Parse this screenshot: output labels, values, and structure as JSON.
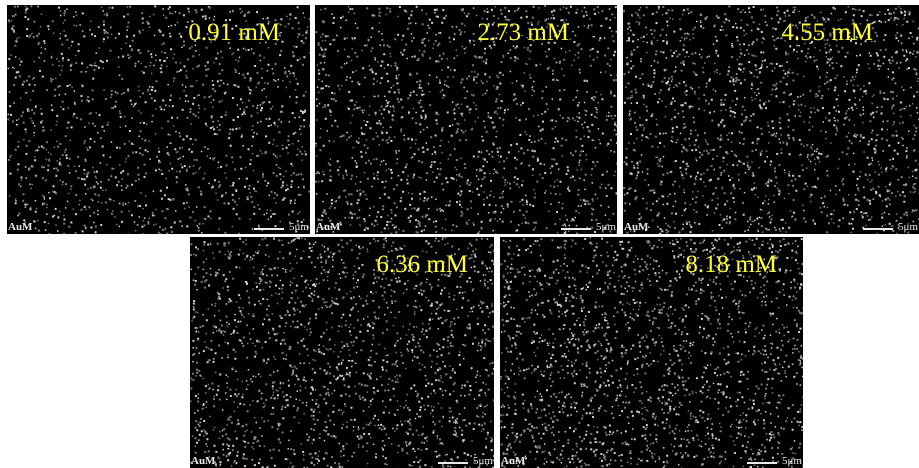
{
  "panels": [
    {
      "label": "0.91 mM",
      "element": "AuM",
      "scale": "5μm"
    },
    {
      "label": "2.73 mM",
      "element": "AuM",
      "scale": "5μm"
    },
    {
      "label": "4.55 mM",
      "element": "AuM",
      "scale": "5μm"
    },
    {
      "label": "6.36 mM",
      "element": "AuM",
      "scale": "5μm"
    },
    {
      "label": "8.18 mM",
      "element": "AuM",
      "scale": "5μm"
    }
  ]
}
